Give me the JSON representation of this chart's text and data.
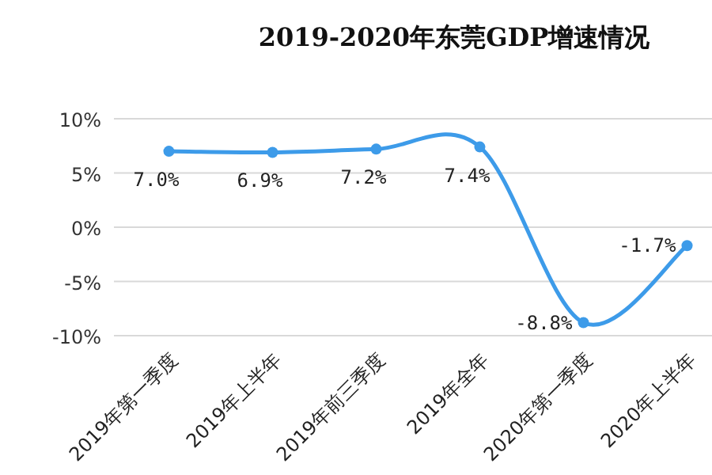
{
  "chart_data": {
    "type": "line",
    "title": "2019-2020年东莞GDP增速情况",
    "categories": [
      "2019年第一季度",
      "2019年上半年",
      "2019年前三季度",
      "2019年全年",
      "2020年第一季度",
      "2020年上半年"
    ],
    "series": [
      {
        "color": "#3d9be9",
        "values": [
          7.0,
          6.9,
          7.2,
          7.4,
          -8.8,
          -1.7
        ],
        "value_labels": [
          "7.0%",
          "6.9%",
          "7.2%",
          "7.4%",
          "-8.8%",
          "-1.7%"
        ]
      }
    ],
    "ylim": [
      -10,
      10
    ],
    "yticks": [
      {
        "value": -10,
        "label": "-10%"
      },
      {
        "value": -5,
        "label": "-5%"
      },
      {
        "value": 0,
        "label": "0%"
      },
      {
        "value": 5,
        "label": "5%"
      },
      {
        "value": 10,
        "label": "10%"
      }
    ],
    "grid": "y",
    "marker": "circle"
  }
}
